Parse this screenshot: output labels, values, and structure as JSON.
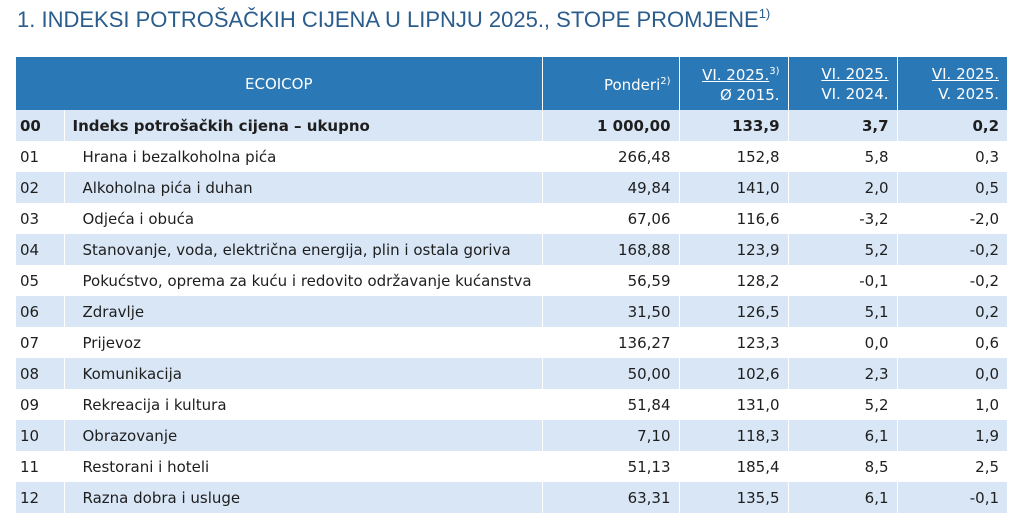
{
  "title": "1. INDEKSI POTROŠAČKIH CIJENA U LIPNJU 2025., STOPE PROMJENE",
  "title_sup": "1)",
  "header": {
    "ecoicop": "ECOICOP",
    "ponderi": "Ponderi",
    "ponderi_sup": "2)",
    "col3_line1": "VI. 2025.",
    "col3_sup": "3)",
    "col3_line2": "Ø 2015.",
    "col4_line1": "VI. 2025.",
    "col4_line2": "VI. 2024.",
    "col5_line1": "VI. 2025.",
    "col5_line2": "V. 2025."
  },
  "rows": [
    {
      "code": "00",
      "name": "Indeks potrošačkih cijena – ukupno",
      "ponderi": "1 000,00",
      "idx2015": "133,9",
      "yoy": "3,7",
      "mom": "0,2"
    },
    {
      "code": "01",
      "name": "Hrana i bezalkoholna pića",
      "ponderi": "266,48",
      "idx2015": "152,8",
      "yoy": "5,8",
      "mom": "0,3"
    },
    {
      "code": "02",
      "name": "Alkoholna pića i duhan",
      "ponderi": "49,84",
      "idx2015": "141,0",
      "yoy": "2,0",
      "mom": "0,5"
    },
    {
      "code": "03",
      "name": "Odjeća i obuća",
      "ponderi": "67,06",
      "idx2015": "116,6",
      "yoy": "-3,2",
      "mom": "-2,0"
    },
    {
      "code": "04",
      "name": "Stanovanje, voda, električna energija, plin i ostala goriva",
      "ponderi": "168,88",
      "idx2015": "123,9",
      "yoy": "5,2",
      "mom": "-0,2"
    },
    {
      "code": "05",
      "name": "Pokućstvo, oprema za kuću i redovito održavanje kućanstva",
      "ponderi": "56,59",
      "idx2015": "128,2",
      "yoy": "-0,1",
      "mom": "-0,2"
    },
    {
      "code": "06",
      "name": "Zdravlje",
      "ponderi": "31,50",
      "idx2015": "126,5",
      "yoy": "5,1",
      "mom": "0,2"
    },
    {
      "code": "07",
      "name": "Prijevoz",
      "ponderi": "136,27",
      "idx2015": "123,3",
      "yoy": "0,0",
      "mom": "0,6"
    },
    {
      "code": "08",
      "name": "Komunikacija",
      "ponderi": "50,00",
      "idx2015": "102,6",
      "yoy": "2,3",
      "mom": "0,0"
    },
    {
      "code": "09",
      "name": "Rekreacija i kultura",
      "ponderi": "51,84",
      "idx2015": "131,0",
      "yoy": "5,2",
      "mom": "1,0"
    },
    {
      "code": "10",
      "name": "Obrazovanje",
      "ponderi": "7,10",
      "idx2015": "118,3",
      "yoy": "6,1",
      "mom": "1,9"
    },
    {
      "code": "11",
      "name": "Restorani i hoteli",
      "ponderi": "51,13",
      "idx2015": "185,4",
      "yoy": "8,5",
      "mom": "2,5"
    },
    {
      "code": "12",
      "name": "Razna dobra i usluge",
      "ponderi": "63,31",
      "idx2015": "135,5",
      "yoy": "6,1",
      "mom": "-0,1"
    }
  ]
}
